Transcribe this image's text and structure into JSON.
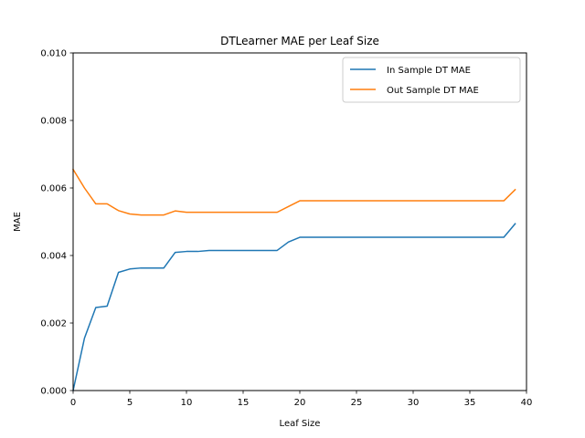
{
  "chart_data": {
    "type": "line",
    "title": "DTLearner MAE per Leaf Size",
    "xlabel": "Leaf Size",
    "ylabel": "MAE",
    "xlim": [
      0,
      40
    ],
    "ylim": [
      0,
      0.01
    ],
    "x_ticks": [
      "0",
      "5",
      "10",
      "15",
      "20",
      "25",
      "30",
      "35",
      "40"
    ],
    "y_ticks": [
      "0.000",
      "0.002",
      "0.004",
      "0.006",
      "0.008",
      "0.010"
    ],
    "x_tick_values": [
      0,
      5,
      10,
      15,
      20,
      25,
      30,
      35,
      40
    ],
    "y_tick_values": [
      0,
      0.002,
      0.004,
      0.006,
      0.008,
      0.01
    ],
    "grid": false,
    "legend_position": "upper right",
    "x": [
      0,
      1,
      2,
      3,
      4,
      5,
      6,
      7,
      8,
      9,
      10,
      11,
      12,
      13,
      14,
      15,
      16,
      17,
      18,
      19,
      20,
      21,
      22,
      23,
      24,
      25,
      26,
      27,
      28,
      29,
      30,
      31,
      32,
      33,
      34,
      35,
      36,
      37,
      38,
      39
    ],
    "series": [
      {
        "name": "In Sample DT MAE",
        "color": "#1f77b4",
        "values": [
          0.0,
          0.00155,
          0.00246,
          0.0025,
          0.0035,
          0.0036,
          0.00363,
          0.00363,
          0.00363,
          0.00409,
          0.00412,
          0.00412,
          0.00415,
          0.00415,
          0.00415,
          0.00415,
          0.00415,
          0.00415,
          0.00415,
          0.0044,
          0.00454,
          0.00454,
          0.00454,
          0.00454,
          0.00454,
          0.00454,
          0.00454,
          0.00454,
          0.00454,
          0.00454,
          0.00454,
          0.00454,
          0.00454,
          0.00454,
          0.00454,
          0.00454,
          0.00454,
          0.00454,
          0.00454,
          0.00494
        ]
      },
      {
        "name": "Out Sample DT MAE",
        "color": "#ff7f0e",
        "values": [
          0.00655,
          0.006,
          0.00553,
          0.00553,
          0.00533,
          0.00523,
          0.0052,
          0.0052,
          0.0052,
          0.00532,
          0.00528,
          0.00528,
          0.00528,
          0.00528,
          0.00528,
          0.00528,
          0.00528,
          0.00528,
          0.00528,
          0.00545,
          0.00562,
          0.00562,
          0.00562,
          0.00562,
          0.00562,
          0.00562,
          0.00562,
          0.00562,
          0.00562,
          0.00562,
          0.00562,
          0.00562,
          0.00562,
          0.00562,
          0.00562,
          0.00562,
          0.00562,
          0.00562,
          0.00562,
          0.00595
        ]
      }
    ]
  }
}
